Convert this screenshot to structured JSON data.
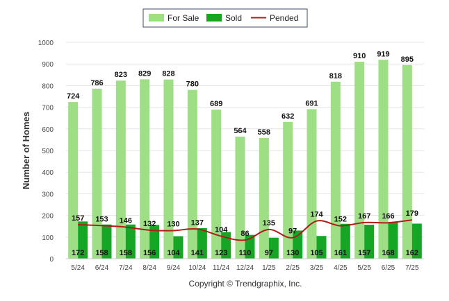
{
  "chart_data": {
    "type": "bar",
    "categories": [
      "5/24",
      "6/24",
      "7/24",
      "8/24",
      "9/24",
      "10/24",
      "11/24",
      "12/24",
      "1/25",
      "2/25",
      "3/25",
      "4/25",
      "5/25",
      "6/25",
      "7/25"
    ],
    "series": [
      {
        "name": "For Sale",
        "kind": "bar",
        "color": "#9ede84",
        "values": [
          724,
          786,
          823,
          829,
          828,
          780,
          689,
          564,
          558,
          632,
          691,
          818,
          910,
          919,
          895
        ]
      },
      {
        "name": "Sold",
        "kind": "bar",
        "color": "#16a626",
        "values": [
          172,
          158,
          158,
          156,
          104,
          141,
          123,
          110,
          97,
          130,
          105,
          161,
          157,
          168,
          162
        ]
      },
      {
        "name": "Pended",
        "kind": "line",
        "color": "#b31b1b",
        "values": [
          157,
          153,
          146,
          132,
          130,
          137,
          104,
          86,
          135,
          97,
          174,
          152,
          167,
          166,
          179
        ]
      }
    ],
    "ylabel": "Number of Homes",
    "xlabel": "",
    "ylim": [
      0,
      1000
    ],
    "yticks": [
      0,
      100,
      200,
      300,
      400,
      500,
      600,
      700,
      800,
      900,
      1000
    ],
    "grid": true,
    "legend_position": "top-center",
    "footer": "Copyright © Trendgraphix, Inc."
  }
}
